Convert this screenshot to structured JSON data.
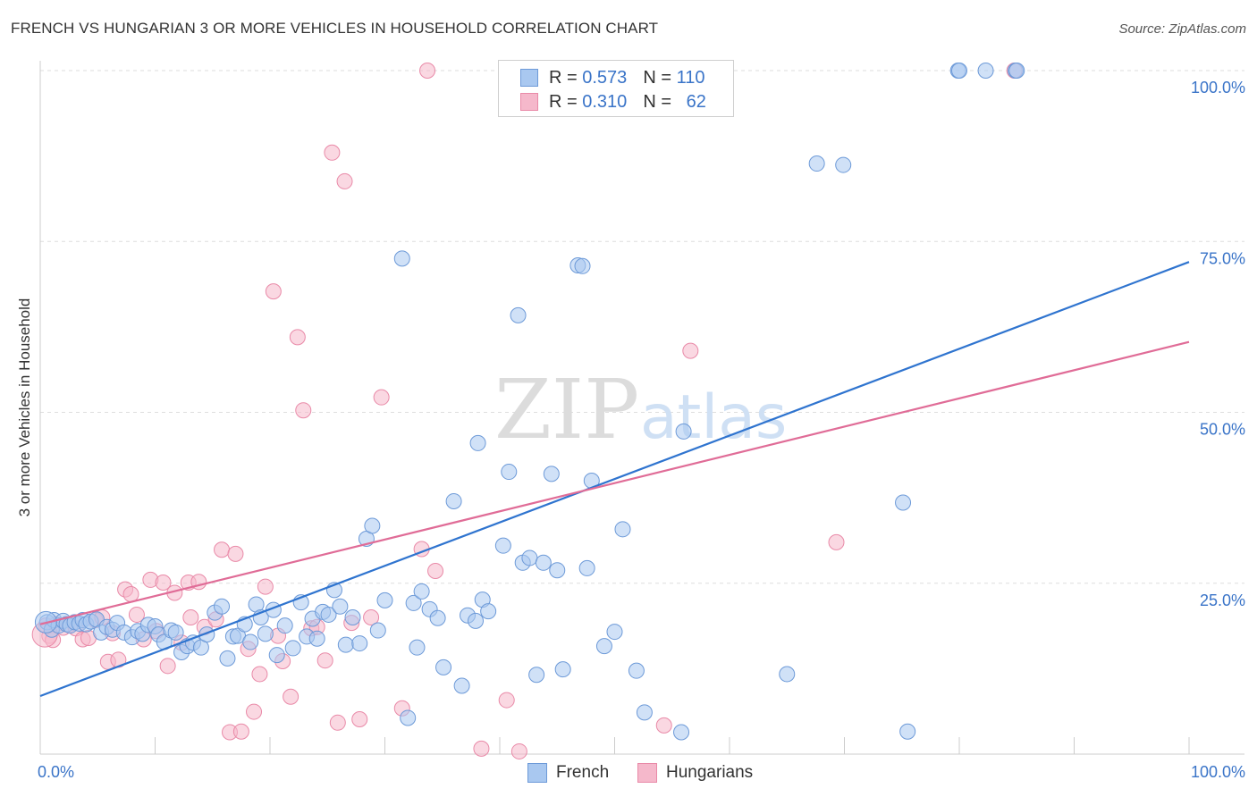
{
  "title": "FRENCH VS HUNGARIAN 3 OR MORE VEHICLES IN HOUSEHOLD CORRELATION CHART",
  "source": "Source: ZipAtlas.com",
  "watermark": {
    "zip": "ZIP",
    "atlas": "atlas"
  },
  "legend": {
    "r_label": "R =",
    "n_label": "N =",
    "french": {
      "r": "0.573",
      "n": "110"
    },
    "hungarians": {
      "r": "0.310",
      "n": "62"
    }
  },
  "colors": {
    "french_fill": "#a9c8f0",
    "french_stroke": "#6d9ad8",
    "french_line": "#2f74cf",
    "hungarians_fill": "#f5b8cb",
    "hungarians_stroke": "#e98aa8",
    "hungarians_line": "#e06c97",
    "tick_label": "#3a74c8"
  },
  "chart_data": {
    "type": "scatter",
    "ylabel": "3 or more Vehicles in Household",
    "xlim": [
      0,
      100
    ],
    "ylim": [
      0,
      100
    ],
    "x_tick_labels": [
      "0.0%",
      "100.0%"
    ],
    "y_ticks": [
      25,
      50,
      75,
      100
    ],
    "y_tick_labels": [
      "25.0%",
      "50.0%",
      "75.0%",
      "100.0%"
    ],
    "grid": "horizontal dashed",
    "legend_position": "top-center",
    "series": [
      {
        "name": "French",
        "trend": {
          "x": [
            0,
            100
          ],
          "y": [
            8.5,
            72
          ]
        },
        "points": [
          [
            0.6,
            19.3
          ],
          [
            1.0,
            18.2
          ],
          [
            1.2,
            19.6
          ],
          [
            1.6,
            18.8
          ],
          [
            2.0,
            19.5
          ],
          [
            2.3,
            19.0
          ],
          [
            2.6,
            18.8
          ],
          [
            3.0,
            19.3
          ],
          [
            3.4,
            19.1
          ],
          [
            3.7,
            19.6
          ],
          [
            4.0,
            19.0
          ],
          [
            4.4,
            19.4
          ],
          [
            4.9,
            19.7
          ],
          [
            5.3,
            17.8
          ],
          [
            5.8,
            18.6
          ],
          [
            6.3,
            18.2
          ],
          [
            6.7,
            19.2
          ],
          [
            7.3,
            17.8
          ],
          [
            8.0,
            17.1
          ],
          [
            8.5,
            18.0
          ],
          [
            8.9,
            17.6
          ],
          [
            9.4,
            18.9
          ],
          [
            10.0,
            18.7
          ],
          [
            10.3,
            17.5
          ],
          [
            10.8,
            16.4
          ],
          [
            11.4,
            18.1
          ],
          [
            11.8,
            17.8
          ],
          [
            12.3,
            14.9
          ],
          [
            12.8,
            15.8
          ],
          [
            13.3,
            16.3
          ],
          [
            14.0,
            15.6
          ],
          [
            14.5,
            17.5
          ],
          [
            15.2,
            20.7
          ],
          [
            15.8,
            21.6
          ],
          [
            16.3,
            14.0
          ],
          [
            16.8,
            17.2
          ],
          [
            17.2,
            17.3
          ],
          [
            17.8,
            19.0
          ],
          [
            18.3,
            16.4
          ],
          [
            18.8,
            21.9
          ],
          [
            19.2,
            20.0
          ],
          [
            19.6,
            17.6
          ],
          [
            20.3,
            21.1
          ],
          [
            20.6,
            14.5
          ],
          [
            21.3,
            18.8
          ],
          [
            22.0,
            15.5
          ],
          [
            22.7,
            22.2
          ],
          [
            23.2,
            17.2
          ],
          [
            23.7,
            19.8
          ],
          [
            24.1,
            16.9
          ],
          [
            24.6,
            20.8
          ],
          [
            25.1,
            20.4
          ],
          [
            25.6,
            24.0
          ],
          [
            26.1,
            21.6
          ],
          [
            26.6,
            16.0
          ],
          [
            27.2,
            20.0
          ],
          [
            27.8,
            16.2
          ],
          [
            28.4,
            31.5
          ],
          [
            28.9,
            33.4
          ],
          [
            29.4,
            18.1
          ],
          [
            30.0,
            22.5
          ],
          [
            31.5,
            72.5
          ],
          [
            32.0,
            5.3
          ],
          [
            32.5,
            22.1
          ],
          [
            32.8,
            15.6
          ],
          [
            33.2,
            23.8
          ],
          [
            33.9,
            21.2
          ],
          [
            34.6,
            19.9
          ],
          [
            35.1,
            12.7
          ],
          [
            36.0,
            37.0
          ],
          [
            36.7,
            10.0
          ],
          [
            37.2,
            20.3
          ],
          [
            37.9,
            19.5
          ],
          [
            38.1,
            45.5
          ],
          [
            38.5,
            22.6
          ],
          [
            39.0,
            20.9
          ],
          [
            40.3,
            30.5
          ],
          [
            40.8,
            41.3
          ],
          [
            41.6,
            64.2
          ],
          [
            42.0,
            28.0
          ],
          [
            42.6,
            28.7
          ],
          [
            43.2,
            11.6
          ],
          [
            43.8,
            28.0
          ],
          [
            44.5,
            41.0
          ],
          [
            45.0,
            26.9
          ],
          [
            45.5,
            12.4
          ],
          [
            46.8,
            71.5
          ],
          [
            47.2,
            71.4
          ],
          [
            47.6,
            27.2
          ],
          [
            48.0,
            40.0
          ],
          [
            49.1,
            15.8
          ],
          [
            50.0,
            17.9
          ],
          [
            50.7,
            32.9
          ],
          [
            51.9,
            12.2
          ],
          [
            52.6,
            6.1
          ],
          [
            56.0,
            47.2
          ],
          [
            55.8,
            3.2
          ],
          [
            65.0,
            11.7
          ],
          [
            67.6,
            86.4
          ],
          [
            69.9,
            86.2
          ],
          [
            75.1,
            36.8
          ],
          [
            75.5,
            3.3
          ],
          [
            58.6,
            100
          ],
          [
            79.9,
            100
          ],
          [
            80.0,
            100
          ],
          [
            82.3,
            100
          ],
          [
            84.9,
            100
          ],
          [
            85.0,
            100
          ]
        ]
      },
      {
        "name": "Hungarians",
        "trend": {
          "x": [
            0,
            100
          ],
          "y": [
            19.0,
            60.3
          ]
        },
        "points": [
          [
            0.5,
            18.8
          ],
          [
            0.8,
            17.3
          ],
          [
            1.1,
            16.7
          ],
          [
            1.4,
            19.0
          ],
          [
            2.0,
            18.5
          ],
          [
            2.5,
            18.9
          ],
          [
            3.1,
            18.4
          ],
          [
            3.7,
            16.8
          ],
          [
            4.2,
            17.0
          ],
          [
            4.8,
            19.6
          ],
          [
            5.4,
            20.0
          ],
          [
            5.9,
            13.5
          ],
          [
            6.3,
            17.7
          ],
          [
            6.8,
            13.8
          ],
          [
            7.4,
            24.1
          ],
          [
            7.9,
            23.4
          ],
          [
            8.4,
            20.4
          ],
          [
            9.0,
            16.8
          ],
          [
            9.6,
            25.5
          ],
          [
            10.1,
            18.0
          ],
          [
            10.7,
            25.1
          ],
          [
            11.1,
            12.9
          ],
          [
            11.7,
            23.6
          ],
          [
            12.3,
            16.3
          ],
          [
            12.9,
            25.1
          ],
          [
            13.1,
            20.0
          ],
          [
            13.8,
            25.2
          ],
          [
            14.3,
            18.6
          ],
          [
            15.3,
            19.7
          ],
          [
            15.8,
            29.9
          ],
          [
            16.5,
            3.2
          ],
          [
            17.0,
            29.3
          ],
          [
            17.5,
            3.3
          ],
          [
            18.1,
            15.4
          ],
          [
            18.6,
            6.2
          ],
          [
            19.1,
            11.7
          ],
          [
            19.6,
            24.5
          ],
          [
            20.3,
            67.7
          ],
          [
            20.7,
            17.3
          ],
          [
            21.1,
            13.6
          ],
          [
            21.8,
            8.4
          ],
          [
            22.4,
            61.0
          ],
          [
            22.9,
            50.3
          ],
          [
            23.6,
            18.4
          ],
          [
            24.1,
            18.6
          ],
          [
            24.8,
            13.7
          ],
          [
            25.4,
            88.0
          ],
          [
            25.9,
            4.6
          ],
          [
            26.5,
            83.8
          ],
          [
            27.1,
            19.2
          ],
          [
            27.8,
            5.1
          ],
          [
            28.8,
            20.0
          ],
          [
            29.7,
            52.2
          ],
          [
            31.5,
            6.7
          ],
          [
            33.2,
            30.0
          ],
          [
            33.7,
            100
          ],
          [
            34.4,
            26.8
          ],
          [
            38.4,
            0.8
          ],
          [
            40.6,
            7.9
          ],
          [
            41.7,
            0.4
          ],
          [
            54.3,
            4.2
          ],
          [
            56.6,
            59.0
          ],
          [
            69.3,
            31.0
          ],
          [
            84.8,
            100
          ]
        ]
      }
    ]
  }
}
